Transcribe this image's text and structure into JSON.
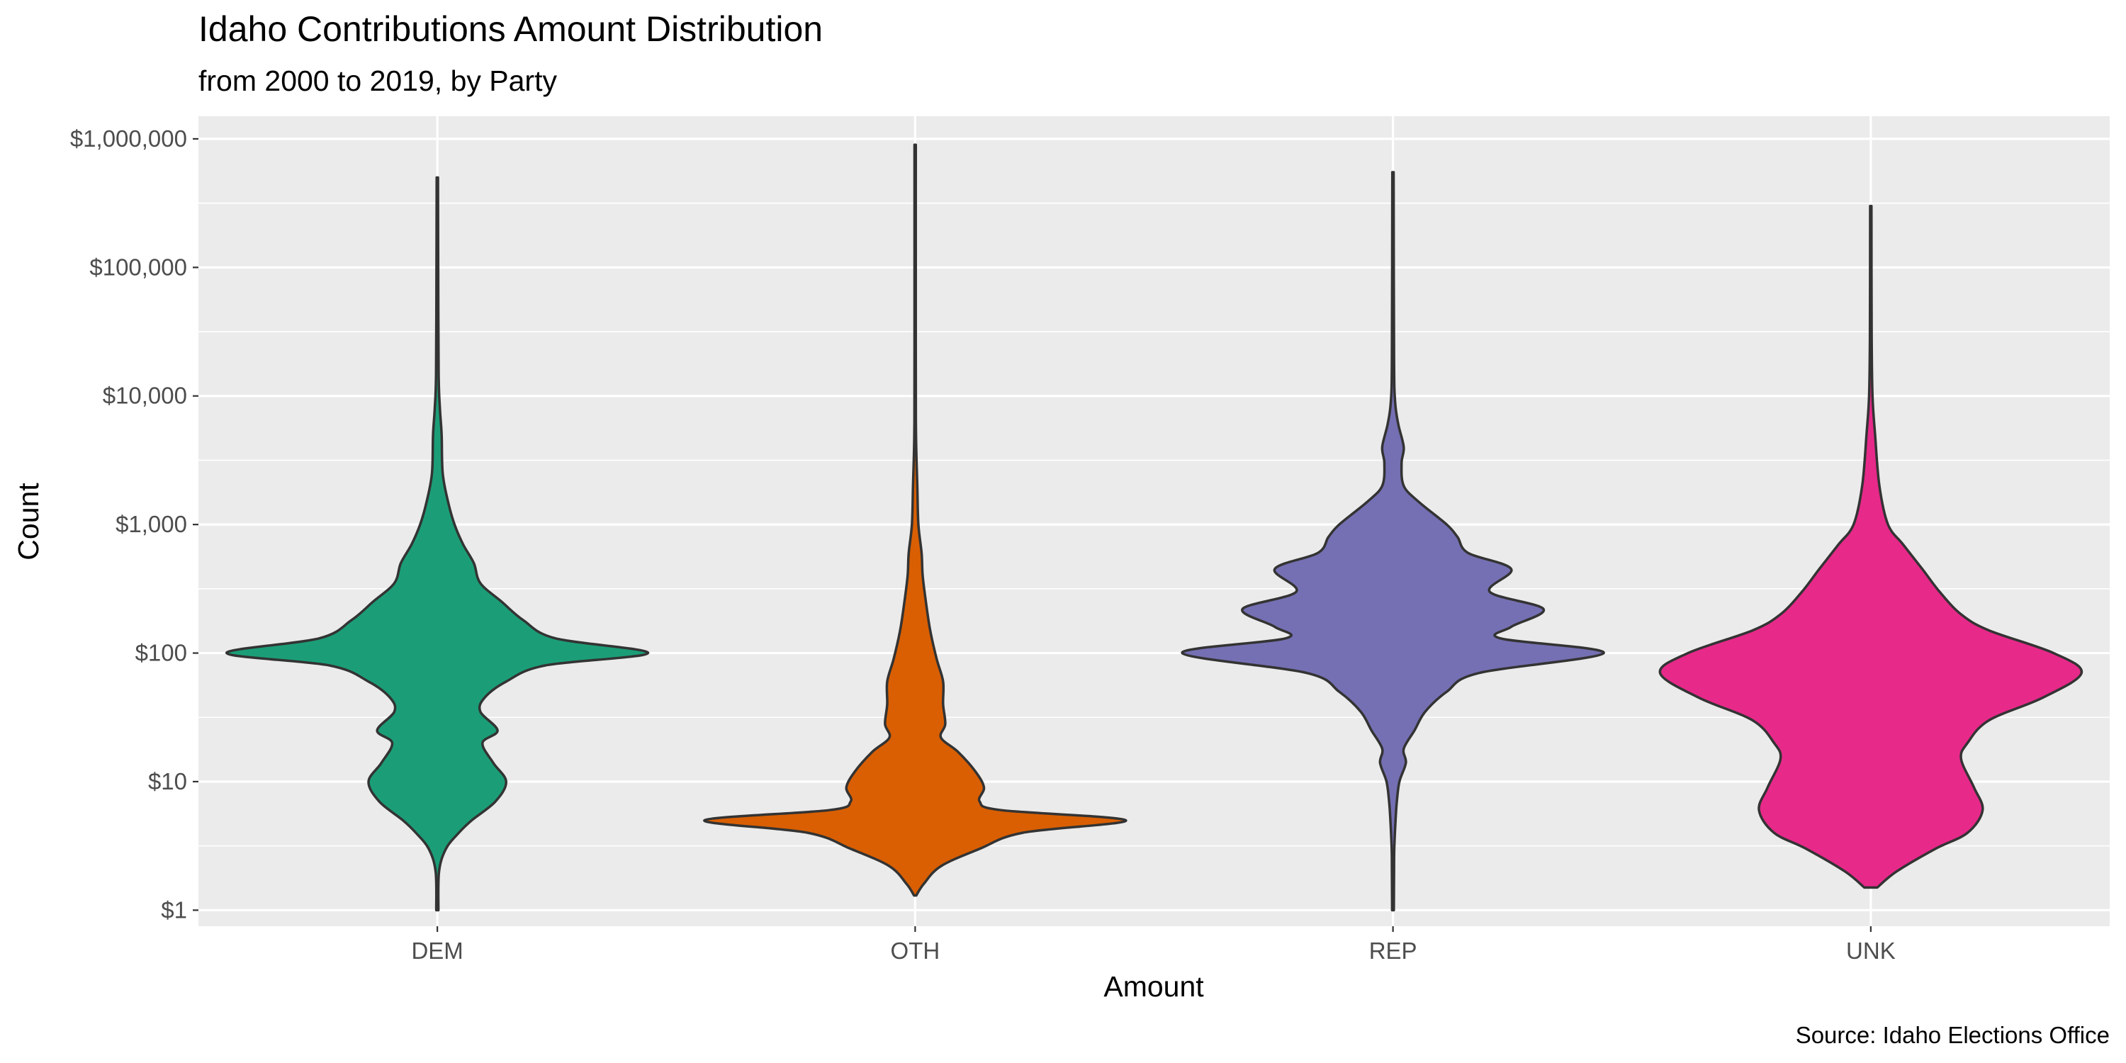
{
  "chart_data": {
    "type": "violin",
    "title": "Idaho Contributions Amount Distribution",
    "subtitle": "from 2000 to 2019, by Party",
    "xlabel": "Amount",
    "ylabel": "Count",
    "caption": "Source: Idaho Elections Office",
    "y_scale": "log10",
    "ylim": [
      0.75,
      1500000
    ],
    "y_ticks": [
      {
        "value": 1,
        "label": "$1"
      },
      {
        "value": 10,
        "label": "$10"
      },
      {
        "value": 100,
        "label": "$100"
      },
      {
        "value": 1000,
        "label": "$1,000"
      },
      {
        "value": 10000,
        "label": "$10,000"
      },
      {
        "value": 100000,
        "label": "$100,000"
      },
      {
        "value": 1000000,
        "label": "$1,000,000"
      }
    ],
    "categories": [
      "DEM",
      "OTH",
      "REP",
      "UNK"
    ],
    "grid": true,
    "background": "#ebebeb",
    "outline_color": "#333333",
    "series": [
      {
        "category": "DEM",
        "color": "#1b9e77",
        "min": 1,
        "max": 500000,
        "density": [
          [
            1,
            0.005
          ],
          [
            2,
            0.008
          ],
          [
            3,
            0.04
          ],
          [
            4,
            0.1
          ],
          [
            5,
            0.16
          ],
          [
            7,
            0.27
          ],
          [
            10,
            0.32
          ],
          [
            14,
            0.26
          ],
          [
            20,
            0.21
          ],
          [
            25,
            0.28
          ],
          [
            35,
            0.2
          ],
          [
            45,
            0.22
          ],
          [
            60,
            0.32
          ],
          [
            80,
            0.5
          ],
          [
            100,
            0.98
          ],
          [
            130,
            0.55
          ],
          [
            180,
            0.4
          ],
          [
            250,
            0.3
          ],
          [
            350,
            0.2
          ],
          [
            500,
            0.17
          ],
          [
            700,
            0.12
          ],
          [
            1000,
            0.08
          ],
          [
            1500,
            0.05
          ],
          [
            2500,
            0.025
          ],
          [
            5000,
            0.02
          ],
          [
            8000,
            0.012
          ],
          [
            15000,
            0.006
          ],
          [
            100000,
            0.004
          ],
          [
            500000,
            0.003
          ]
        ]
      },
      {
        "category": "OTH",
        "color": "#d95f02",
        "min": 1.3,
        "max": 900000,
        "density": [
          [
            1.3,
            0.005
          ],
          [
            1.6,
            0.04
          ],
          [
            2.2,
            0.12
          ],
          [
            3,
            0.3
          ],
          [
            4,
            0.5
          ],
          [
            5,
            0.98
          ],
          [
            6,
            0.4
          ],
          [
            7,
            0.3
          ],
          [
            9,
            0.32
          ],
          [
            12,
            0.28
          ],
          [
            17,
            0.2
          ],
          [
            22,
            0.12
          ],
          [
            28,
            0.14
          ],
          [
            40,
            0.13
          ],
          [
            60,
            0.13
          ],
          [
            90,
            0.1
          ],
          [
            150,
            0.07
          ],
          [
            250,
            0.05
          ],
          [
            400,
            0.035
          ],
          [
            600,
            0.03
          ],
          [
            1000,
            0.015
          ],
          [
            2000,
            0.01
          ],
          [
            5000,
            0.004
          ],
          [
            20000,
            0.003
          ],
          [
            900000,
            0.003
          ]
        ]
      },
      {
        "category": "REP",
        "color": "#7570b3",
        "min": 1,
        "max": 550000,
        "density": [
          [
            1,
            0.004
          ],
          [
            2,
            0.005
          ],
          [
            3,
            0.006
          ],
          [
            5,
            0.012
          ],
          [
            7,
            0.018
          ],
          [
            10,
            0.03
          ],
          [
            14,
            0.06
          ],
          [
            18,
            0.05
          ],
          [
            25,
            0.1
          ],
          [
            35,
            0.15
          ],
          [
            50,
            0.25
          ],
          [
            70,
            0.4
          ],
          [
            100,
            0.98
          ],
          [
            130,
            0.5
          ],
          [
            160,
            0.55
          ],
          [
            220,
            0.7
          ],
          [
            300,
            0.45
          ],
          [
            450,
            0.55
          ],
          [
            600,
            0.35
          ],
          [
            800,
            0.3
          ],
          [
            1000,
            0.25
          ],
          [
            1500,
            0.12
          ],
          [
            2000,
            0.05
          ],
          [
            3000,
            0.04
          ],
          [
            4000,
            0.05
          ],
          [
            6000,
            0.025
          ],
          [
            9000,
            0.01
          ],
          [
            20000,
            0.005
          ],
          [
            550000,
            0.003
          ]
        ]
      },
      {
        "category": "UNK",
        "color": "#e7298a",
        "min": 1.5,
        "max": 300000,
        "density": [
          [
            1.5,
            0.03
          ],
          [
            2,
            0.12
          ],
          [
            3,
            0.3
          ],
          [
            4,
            0.45
          ],
          [
            6,
            0.52
          ],
          [
            9,
            0.48
          ],
          [
            15,
            0.42
          ],
          [
            20,
            0.45
          ],
          [
            30,
            0.55
          ],
          [
            45,
            0.8
          ],
          [
            70,
            0.98
          ],
          [
            100,
            0.85
          ],
          [
            150,
            0.55
          ],
          [
            200,
            0.42
          ],
          [
            300,
            0.32
          ],
          [
            450,
            0.24
          ],
          [
            700,
            0.15
          ],
          [
            1000,
            0.08
          ],
          [
            2000,
            0.04
          ],
          [
            5000,
            0.02
          ],
          [
            10000,
            0.008
          ],
          [
            30000,
            0.004
          ],
          [
            300000,
            0.003
          ]
        ]
      }
    ]
  }
}
